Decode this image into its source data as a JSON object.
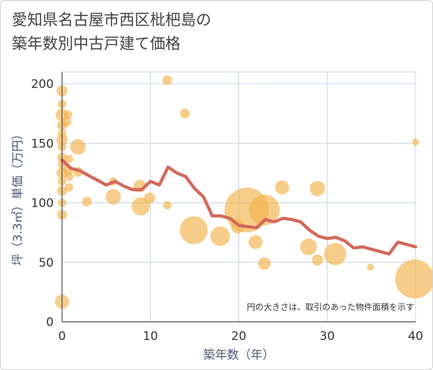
{
  "chart_data": {
    "type": "scatter",
    "title_lines": [
      "愛知県名古屋市西区枇杷島の",
      "築年数別中古戸建て価格"
    ],
    "xlabel": "築年数（年）",
    "ylabel": "坪（3.3㎡）単価（万円）",
    "xlim": [
      0,
      40
    ],
    "ylim": [
      0,
      210
    ],
    "xticks": [
      0,
      10,
      20,
      30,
      40
    ],
    "yticks": [
      0,
      50,
      100,
      150,
      200
    ],
    "grid": true,
    "note": "円の大きさは、取引のあった物件面積を示す",
    "colors": {
      "bubble": "#f2b24c",
      "line": "#d4685a",
      "grid": "#c4d3e0"
    },
    "bubbles": [
      {
        "x": 0,
        "y": 194,
        "r": 8
      },
      {
        "x": 0,
        "y": 183,
        "r": 6
      },
      {
        "x": 0,
        "y": 174,
        "r": 9
      },
      {
        "x": 0,
        "y": 165,
        "r": 7
      },
      {
        "x": 0,
        "y": 158,
        "r": 6
      },
      {
        "x": 0,
        "y": 153,
        "r": 8
      },
      {
        "x": 0,
        "y": 147,
        "r": 6
      },
      {
        "x": 0,
        "y": 138,
        "r": 7
      },
      {
        "x": 0,
        "y": 132,
        "r": 6
      },
      {
        "x": 0,
        "y": 125,
        "r": 8
      },
      {
        "x": 0,
        "y": 118,
        "r": 6
      },
      {
        "x": 0,
        "y": 110,
        "r": 7
      },
      {
        "x": 0,
        "y": 100,
        "r": 6
      },
      {
        "x": 0,
        "y": 90,
        "r": 7
      },
      {
        "x": 0,
        "y": 17,
        "r": 10
      },
      {
        "x": 0.5,
        "y": 168,
        "r": 7
      },
      {
        "x": 0.7,
        "y": 174,
        "r": 6
      },
      {
        "x": 0.7,
        "y": 127,
        "r": 7
      },
      {
        "x": 0.8,
        "y": 137,
        "r": 6
      },
      {
        "x": 0.8,
        "y": 113,
        "r": 6
      },
      {
        "x": 0.8,
        "y": 122,
        "r": 6
      },
      {
        "x": 1.8,
        "y": 147,
        "r": 11
      },
      {
        "x": 1.8,
        "y": 126,
        "r": 7
      },
      {
        "x": 2.8,
        "y": 101,
        "r": 7
      },
      {
        "x": 5.8,
        "y": 118,
        "r": 6
      },
      {
        "x": 5.8,
        "y": 105,
        "r": 11
      },
      {
        "x": 8.8,
        "y": 114,
        "r": 9
      },
      {
        "x": 8.9,
        "y": 97,
        "r": 13
      },
      {
        "x": 9.9,
        "y": 104,
        "r": 8
      },
      {
        "x": 11.9,
        "y": 203,
        "r": 7
      },
      {
        "x": 11.9,
        "y": 98,
        "r": 6
      },
      {
        "x": 13.9,
        "y": 175,
        "r": 7
      },
      {
        "x": 14.9,
        "y": 77,
        "r": 20
      },
      {
        "x": 17.9,
        "y": 72,
        "r": 14
      },
      {
        "x": 19.9,
        "y": 80,
        "r": 10
      },
      {
        "x": 20.9,
        "y": 94,
        "r": 32
      },
      {
        "x": 21.9,
        "y": 67,
        "r": 10
      },
      {
        "x": 22.9,
        "y": 94,
        "r": 22
      },
      {
        "x": 22.9,
        "y": 49,
        "r": 9
      },
      {
        "x": 24.9,
        "y": 113,
        "r": 10
      },
      {
        "x": 27.9,
        "y": 63,
        "r": 12
      },
      {
        "x": 28.9,
        "y": 112,
        "r": 11
      },
      {
        "x": 28.9,
        "y": 52,
        "r": 8
      },
      {
        "x": 30.9,
        "y": 57,
        "r": 16
      },
      {
        "x": 34.9,
        "y": 46,
        "r": 5
      },
      {
        "x": 39.9,
        "y": 36,
        "r": 28
      },
      {
        "x": 40,
        "y": 151,
        "r": 5
      }
    ],
    "trend": [
      [
        0,
        136
      ],
      [
        1,
        129
      ],
      [
        2,
        127
      ],
      [
        3,
        123
      ],
      [
        4,
        119
      ],
      [
        5,
        115
      ],
      [
        6,
        118
      ],
      [
        7,
        114
      ],
      [
        8,
        111
      ],
      [
        9,
        111
      ],
      [
        10,
        118
      ],
      [
        11,
        115
      ],
      [
        12,
        130
      ],
      [
        13,
        125
      ],
      [
        14,
        122
      ],
      [
        15,
        112
      ],
      [
        16,
        105
      ],
      [
        17,
        89
      ],
      [
        18,
        89
      ],
      [
        19,
        87
      ],
      [
        20,
        81
      ],
      [
        21,
        80
      ],
      [
        22,
        79
      ],
      [
        23,
        86
      ],
      [
        24,
        84
      ],
      [
        25,
        87
      ],
      [
        26,
        86
      ],
      [
        27,
        84
      ],
      [
        28,
        77
      ],
      [
        29,
        72
      ],
      [
        30,
        70
      ],
      [
        31,
        71
      ],
      [
        32,
        68
      ],
      [
        33,
        62
      ],
      [
        34,
        63
      ],
      [
        35,
        61
      ],
      [
        36,
        59
      ],
      [
        37,
        57
      ],
      [
        38,
        67
      ],
      [
        39,
        65
      ],
      [
        40,
        63
      ]
    ]
  }
}
